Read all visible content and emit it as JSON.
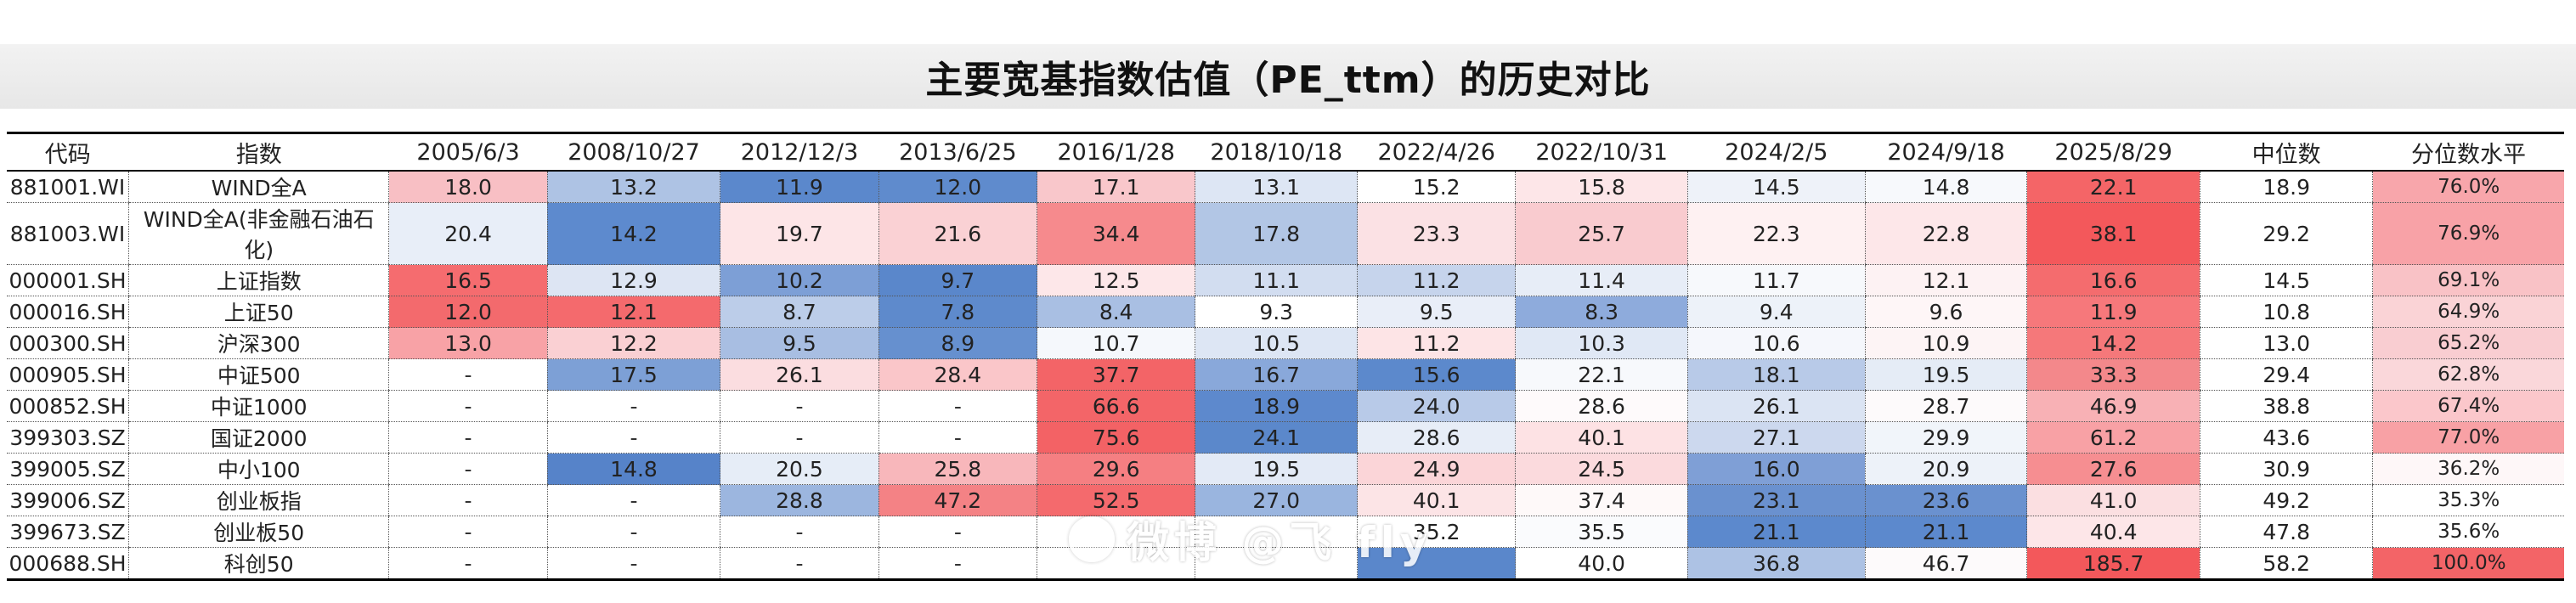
{
  "title": "主要宽基指数估值（PE_ttm）的历史对比",
  "columns": [
    "代码",
    "指数",
    "2005/6/3",
    "2008/10/27",
    "2012/12/3",
    "2013/6/25",
    "2016/1/28",
    "2018/10/18",
    "2022/4/26",
    "2022/10/31",
    "2024/2/5",
    "2024/9/18",
    "2025/8/29",
    "中位数",
    "分位数水平"
  ],
  "rows": [
    {
      "code": "881001.WI",
      "name": "WIND全A",
      "values": [
        "18.0",
        "13.2",
        "11.9",
        "12.0",
        "17.1",
        "13.1",
        "15.2",
        "15.8",
        "14.5",
        "14.8",
        "22.1",
        "18.9",
        "76.0%"
      ]
    },
    {
      "code": "881003.WI",
      "name": "WIND全A(非金融石油石化)",
      "values": [
        "20.4",
        "14.2",
        "19.7",
        "21.6",
        "34.4",
        "17.8",
        "23.3",
        "25.7",
        "22.3",
        "22.8",
        "38.1",
        "29.2",
        "76.9%"
      ]
    },
    {
      "code": "000001.SH",
      "name": "上证指数",
      "values": [
        "16.5",
        "12.9",
        "10.2",
        "9.7",
        "12.5",
        "11.1",
        "11.2",
        "11.4",
        "11.7",
        "12.1",
        "16.6",
        "14.5",
        "69.1%"
      ]
    },
    {
      "code": "000016.SH",
      "name": "上证50",
      "values": [
        "12.0",
        "12.1",
        "8.7",
        "7.8",
        "8.4",
        "9.3",
        "9.5",
        "8.3",
        "9.4",
        "9.6",
        "11.9",
        "10.8",
        "64.9%"
      ]
    },
    {
      "code": "000300.SH",
      "name": "沪深300",
      "values": [
        "13.0",
        "12.2",
        "9.5",
        "8.9",
        "10.7",
        "10.5",
        "11.2",
        "10.3",
        "10.6",
        "10.9",
        "14.2",
        "13.0",
        "65.2%"
      ]
    },
    {
      "code": "000905.SH",
      "name": "中证500",
      "values": [
        "-",
        "17.5",
        "26.1",
        "28.4",
        "37.7",
        "16.7",
        "15.6",
        "22.1",
        "18.1",
        "19.5",
        "33.3",
        "29.4",
        "62.8%"
      ]
    },
    {
      "code": "000852.SH",
      "name": "中证1000",
      "values": [
        "-",
        "-",
        "-",
        "-",
        "66.6",
        "18.9",
        "24.0",
        "28.6",
        "26.1",
        "28.7",
        "46.9",
        "38.8",
        "67.4%"
      ]
    },
    {
      "code": "399303.SZ",
      "name": "国证2000",
      "values": [
        "-",
        "-",
        "-",
        "-",
        "75.6",
        "24.1",
        "28.6",
        "40.1",
        "27.1",
        "29.9",
        "61.2",
        "43.6",
        "77.0%"
      ]
    },
    {
      "code": "399005.SZ",
      "name": "中小100",
      "values": [
        "-",
        "14.8",
        "20.5",
        "25.8",
        "29.6",
        "19.5",
        "24.9",
        "24.5",
        "16.0",
        "20.9",
        "27.6",
        "30.9",
        "36.2%"
      ]
    },
    {
      "code": "399006.SZ",
      "name": "创业板指",
      "values": [
        "-",
        "-",
        "28.8",
        "47.2",
        "52.5",
        "27.0",
        "40.1",
        "37.4",
        "23.1",
        "23.6",
        "41.0",
        "49.2",
        "35.3%"
      ]
    },
    {
      "code": "399673.SZ",
      "name": "创业板50",
      "values": [
        "-",
        "-",
        "-",
        "-",
        "",
        "",
        "35.2",
        "35.5",
        "21.1",
        "21.1",
        "40.4",
        "47.8",
        "35.6%"
      ]
    },
    {
      "code": "000688.SH",
      "name": "科创50",
      "values": [
        "-",
        "-",
        "-",
        "-",
        "",
        "",
        "",
        "40.0",
        "36.8",
        "46.7",
        "185.7",
        "58.2",
        "100.0%"
      ]
    }
  ],
  "colors": [
    [
      "#f8bfc4",
      "#aec3e4",
      "#5b88cc",
      "#5f8bcd",
      "#f9c7cb",
      "#dde6f4",
      "#ffffff",
      "#fde6e8",
      "#eef2f9",
      "#f7f9fc",
      "#f46567",
      "#ffffff",
      "#f8a6ab"
    ],
    [
      "#e8eef8",
      "#5d8ace",
      "#fde5e7",
      "#fad1d4",
      "#f68a8d",
      "#b2c6e5",
      "#fbe1e4",
      "#f9cbcf",
      "#fef1f2",
      "#fde7e9",
      "#f3585b",
      "#ffffff",
      "#f8a2a7"
    ],
    [
      "#f56c6f",
      "#dde5f3",
      "#7d9fd6",
      "#5a87cb",
      "#fde7e9",
      "#d2ddf0",
      "#c6d4ec",
      "#e7edf7",
      "#f7f9fc",
      "#fdf2f3",
      "#f46c6e",
      "#ffffff",
      "#f9c2c6"
    ],
    [
      "#f36a6d",
      "#f46a6d",
      "#bccde9",
      "#5e8acc",
      "#a9bfe3",
      "#ffffff",
      "#e9eef8",
      "#8eabdc",
      "#edf2f9",
      "#fef6f7",
      "#f6787b",
      "#ffffff",
      "#fad3d6"
    ],
    [
      "#f8a2a6",
      "#fad0d3",
      "#a8bee2",
      "#6690cf",
      "#f5f8fc",
      "#dde6f4",
      "#fde4e6",
      "#e0e8f5",
      "#f5f7fc",
      "#fdf4f5",
      "#f5787a",
      "#ffffff",
      "#f9cdd1"
    ],
    [
      "#ffffff",
      "#7da0d6",
      "#fbdde0",
      "#fac6c9",
      "#f36467",
      "#89a8da",
      "#5c89cc",
      "#f7f9fc",
      "#b8cae8",
      "#e5ecf6",
      "#f3888b",
      "#ffffff",
      "#fad7da"
    ],
    [
      "#ffffff",
      "#ffffff",
      "#ffffff",
      "#ffffff",
      "#f36568",
      "#5d89cd",
      "#b8cae8",
      "#fefafb",
      "#dbe4f3",
      "#fdfafb",
      "#f8b1b5",
      "#ffffff",
      "#fbc7cb"
    ],
    [
      "#ffffff",
      "#ffffff",
      "#ffffff",
      "#ffffff",
      "#f36265",
      "#5b88cb",
      "#e7edf7",
      "#fde2e4",
      "#ccd8ee",
      "#f1f5fa",
      "#f8a1a5",
      "#ffffff",
      "#f8a1a5"
    ],
    [
      "#ffffff",
      "#5683c9",
      "#e6edf7",
      "#f8b7bb",
      "#f57f82",
      "#e3eaf6",
      "#fbd5d8",
      "#fbdadd",
      "#7f9fd6",
      "#edf2f9",
      "#f68e91",
      "#ffffff",
      "#fef7f8"
    ],
    [
      "#ffffff",
      "#ffffff",
      "#9cb6df",
      "#f48285",
      "#f46a6d",
      "#9ab5df",
      "#fce4e6",
      "#fef9f9",
      "#6a91cf",
      "#6a91cf",
      "#fbdfe1",
      "#ffffff",
      "#ffffff"
    ],
    [
      "#ffffff",
      "#ffffff",
      "#ffffff",
      "#ffffff",
      "#ffffff",
      "#ffffff",
      "#ffffff",
      "#fafbfd",
      "#5c89cd",
      "#5c89cd",
      "#fde6e8",
      "#ffffff",
      "#ffffff"
    ],
    [
      "#ffffff",
      "#ffffff",
      "#ffffff",
      "#ffffff",
      "#ffffff",
      "#ffffff",
      "#5a87cb",
      "#ffffff",
      "#adc2e4",
      "#fdfafb",
      "#f3585b",
      "#ffffff",
      "#f36467"
    ]
  ],
  "watermark": "微博 @飞 fly"
}
